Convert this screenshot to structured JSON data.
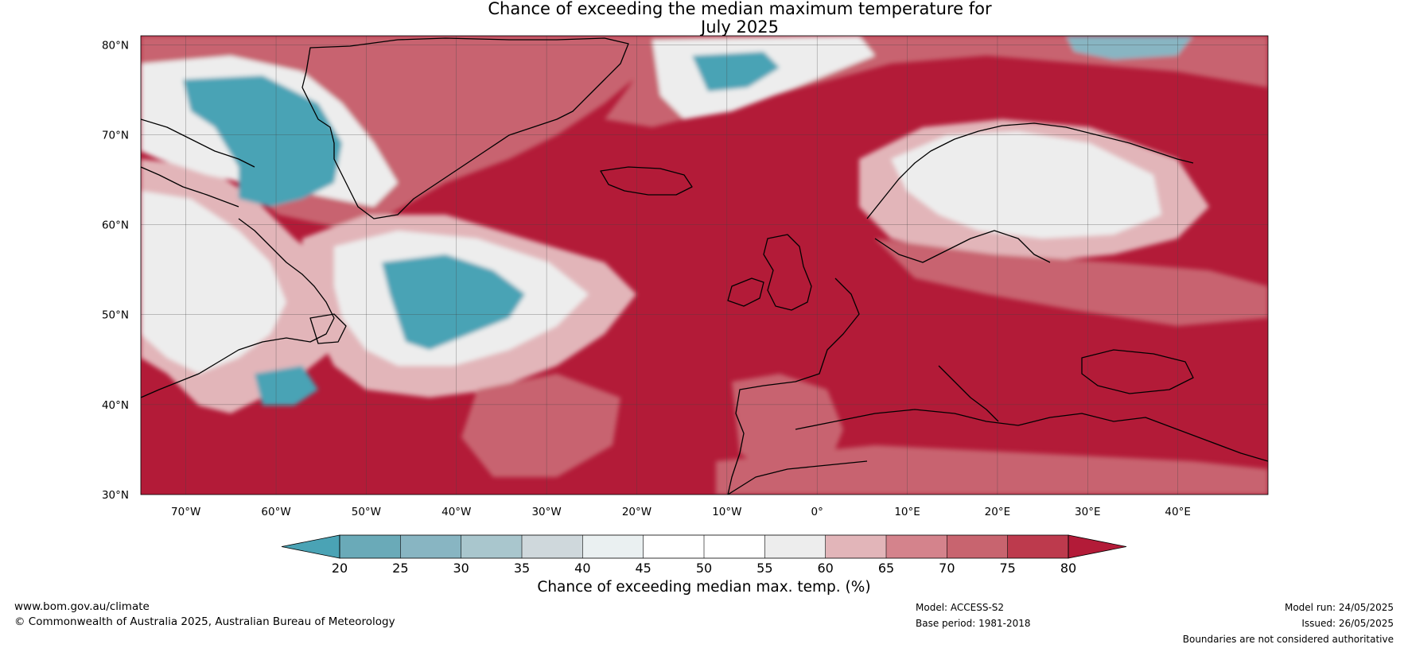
{
  "title": {
    "line1": "Chance of exceeding the median maximum temperature for",
    "line2": "July 2025"
  },
  "map": {
    "lat_labels": [
      "80°N",
      "70°N",
      "60°N",
      "50°N",
      "40°N",
      "30°N"
    ],
    "lon_labels": [
      "70°W",
      "60°W",
      "50°W",
      "40°W",
      "30°W",
      "20°W",
      "10°W",
      "0°",
      "10°E",
      "20°E",
      "30°E",
      "40°E"
    ],
    "lat_range": [
      30,
      81
    ],
    "lon_range": [
      -75,
      50
    ],
    "regions": [
      {
        "name": "Atlantic and Europe warm area",
        "value": 80
      },
      {
        "name": "Greenland interior",
        "value": 30
      },
      {
        "name": "North Atlantic cool patch",
        "value": 25
      },
      {
        "name": "Scandinavia interior",
        "value": 55
      },
      {
        "name": "Canadian Arctic",
        "value": 30
      }
    ]
  },
  "colorbar": {
    "ticks": [
      "20",
      "25",
      "30",
      "35",
      "40",
      "45",
      "50",
      "55",
      "60",
      "65",
      "70",
      "75",
      "80"
    ],
    "below_color": "#4aa3b5",
    "above_color": "#b31b38",
    "colors": [
      "#6aaab8",
      "#88b5c2",
      "#a9c6cd",
      "#cfd8dc",
      "#eaf0f1",
      "#ffffff",
      "#ffffff",
      "#ededed",
      "#e2b5b9",
      "#d4838c",
      "#c8646f",
      "#bd3a4d"
    ],
    "label": "Chance of exceeding median max. temp. (%)"
  },
  "colors": {
    "hot": "#b31b38",
    "warm": "#c8646f",
    "mild": "#e2b5b9",
    "neutral": "#ededed",
    "cool": "#4aa3b5",
    "coolmid": "#88b5c2"
  },
  "footer": {
    "website": "www.bom.gov.au/climate",
    "copyright": "© Commonwealth of Australia 2025, Australian Bureau of Meteorology",
    "model": "Model: ACCESS-S2",
    "base_period": "Base period: 1981-2018",
    "model_run": "Model run: 24/05/2025",
    "issued": "Issued: 26/05/2025",
    "disclaimer": "Boundaries are not considered authoritative"
  }
}
